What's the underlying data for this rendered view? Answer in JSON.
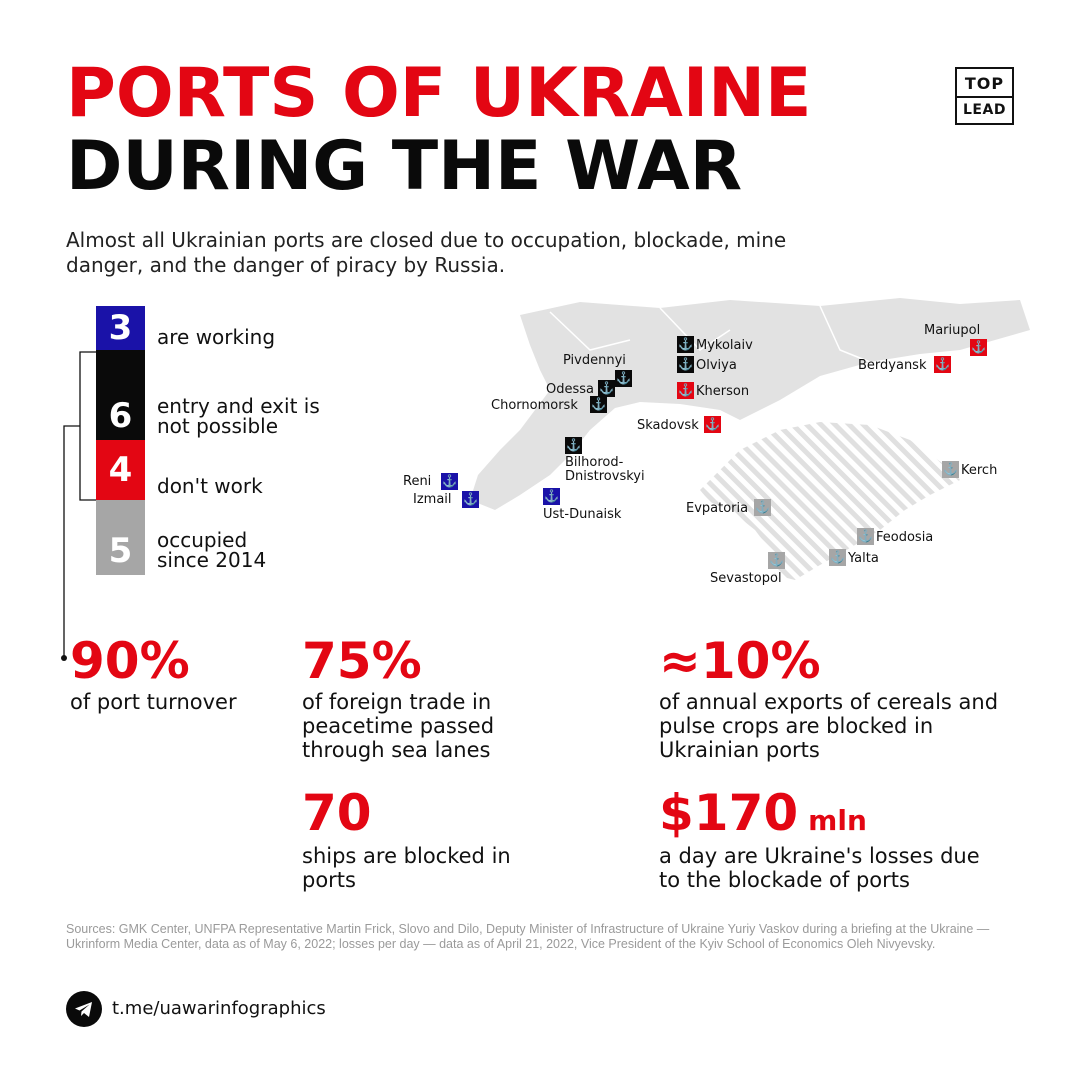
{
  "title": {
    "line1": "PORTS OF UKRAINE",
    "line2": "DURING THE WAR"
  },
  "logo": {
    "top": "TOP",
    "bottom": "LEAD"
  },
  "subtitle": "Almost all Ukrainian ports are closed due to occupation, blockade, mine danger, and the danger of piracy by Russia.",
  "colors": {
    "red": "#e30613",
    "blue": "#1a12a8",
    "black": "#0a0a0a",
    "gray": "#a6a6a6",
    "map": "#e2e2e2"
  },
  "legend": [
    {
      "count": "3",
      "label": "are working"
    },
    {
      "count": "6",
      "label": "entry and exit is not possible"
    },
    {
      "count": "4",
      "label": "don't work"
    },
    {
      "count": "5",
      "label": "occupied since 2014"
    }
  ],
  "ports": {
    "working": [
      "Reni",
      "Izmail",
      "Ust-Dunaisk"
    ],
    "blocked": [
      "Pivdennyi",
      "Odessa",
      "Chornomorsk",
      "Bilhorod-Dnistrovskyi",
      "Mykolaiv",
      "Olviya"
    ],
    "not_working": [
      "Kherson",
      "Skadovsk",
      "Berdyansk",
      "Mariupol"
    ],
    "occupied_2014": [
      "Evpatoria",
      "Sevastopol",
      "Yalta",
      "Feodosia",
      "Kerch"
    ]
  },
  "stats": [
    {
      "value": "90%",
      "text": "of port turnover"
    },
    {
      "value": "75%",
      "text": "of foreign trade in peacetime passed through sea lanes"
    },
    {
      "value": "≈10%",
      "text": "of annual exports of cereals and pulse crops are blocked in Ukrainian ports"
    },
    {
      "value": "70",
      "text": "ships are blocked in ports"
    },
    {
      "value": "$170",
      "unit": "mln",
      "text": "a day are Ukraine's losses due to the blockade of ports"
    }
  ],
  "sources": "Sources: GMK Center, UNFPA Representative Martin Frick, Slovo and Dilo, Deputy Minister of Infrastructure of Ukraine Yuriy Vaskov during a briefing at the Ukraine — Ukrinform Media Center, data as of May 6, 2022; losses per day — data as of April 21, 2022, Vice President of the Kyiv School of Economics Oleh Nivyevsky.",
  "footer": {
    "channel": "t.me/uawarinfographics",
    "icon": "telegram-icon"
  }
}
